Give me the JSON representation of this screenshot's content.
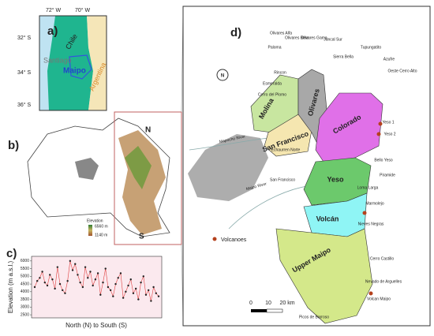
{
  "panels": {
    "a": {
      "label": "a)",
      "lon_ticks": [
        "72° W",
        "70° W"
      ],
      "lat_ticks": [
        "32° S",
        "34° S",
        "36° S"
      ],
      "places": [
        "Chile",
        "Santiago",
        "Maipo",
        "Argentina"
      ]
    },
    "b": {
      "label": "b)",
      "north": "N",
      "south": "S",
      "legend_title": "Elevation",
      "legend_max": "6560 m",
      "legend_min": "1140 m"
    },
    "c": {
      "label": "c)",
      "y_label": "Elevation (m a.s.l.)",
      "x_label": "North (N) to South (S)",
      "ylim": [
        2300,
        6300
      ],
      "yticks": [
        2500,
        3000,
        3500,
        4000,
        4500,
        5000,
        5500,
        6000
      ],
      "values": [
        4300,
        4700,
        4900,
        5300,
        4600,
        4400,
        5100,
        4800,
        4200,
        5600,
        4500,
        4100,
        3900,
        4700,
        6000,
        5400,
        5800,
        5100,
        4600,
        4300,
        5600,
        4900,
        5300,
        4400,
        4800,
        5200,
        3800,
        4600,
        5500,
        4300,
        4100,
        3700,
        4500,
        4900,
        5200,
        3600,
        4000,
        4400,
        4800,
        3900,
        4200,
        3500,
        4600,
        5000,
        3800,
        4100,
        3400,
        4300,
        3900,
        3700
      ]
    },
    "d": {
      "label": "d)",
      "basins": [
        "Molina",
        "San Francisco",
        "Olivares",
        "Colorado",
        "Yeso",
        "Volcán",
        "Upper Maipo"
      ],
      "glaciers": [
        "Olivares Alfa",
        "Olivares Beta",
        "Olivares Gama",
        "Juncal Sur",
        "Paloma",
        "Rincon",
        "Esmeralda",
        "Cerro del Plomo",
        "Tupungatito",
        "Azufre",
        "Oeste Cerro Alto",
        "Sierra Bella",
        "Yeso 1",
        "Yeso 2",
        "Bello Yeso",
        "Piramide",
        "Loma Larga",
        "Marmolejo",
        "Nieves Negras",
        "Cerro Castillo",
        "Nevado de Arguelles",
        "Volcan Maipo",
        "Picos de Barroso",
        "Echaurren Norte",
        "San Francisco"
      ],
      "rivers": [
        "Mapocho River",
        "Maipo River"
      ],
      "legend": "Volcanoes",
      "compass": "N",
      "scale": [
        "0",
        "10",
        "20 km"
      ]
    }
  }
}
